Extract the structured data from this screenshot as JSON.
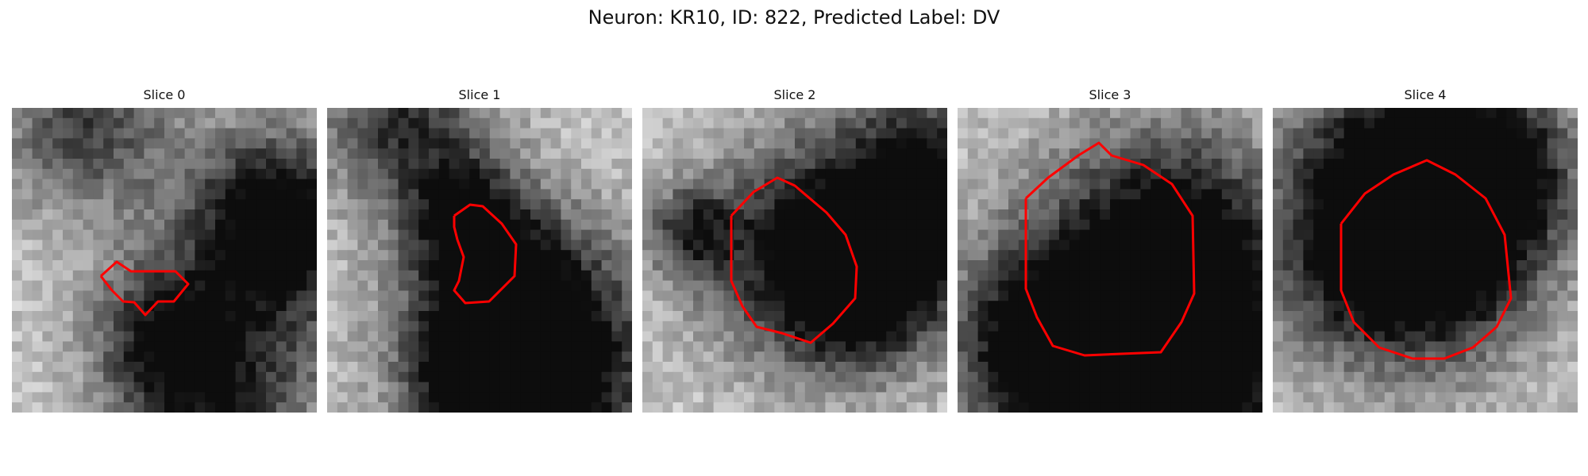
{
  "figure": {
    "title": "Neuron: KR10, ID: 822, Predicted Label: DV",
    "contour_color": "#ff0000"
  },
  "slices": [
    {
      "label": "Slice 0"
    },
    {
      "label": "Slice 1"
    },
    {
      "label": "Slice 2"
    },
    {
      "label": "Slice 3"
    },
    {
      "label": "Slice 4"
    }
  ]
}
